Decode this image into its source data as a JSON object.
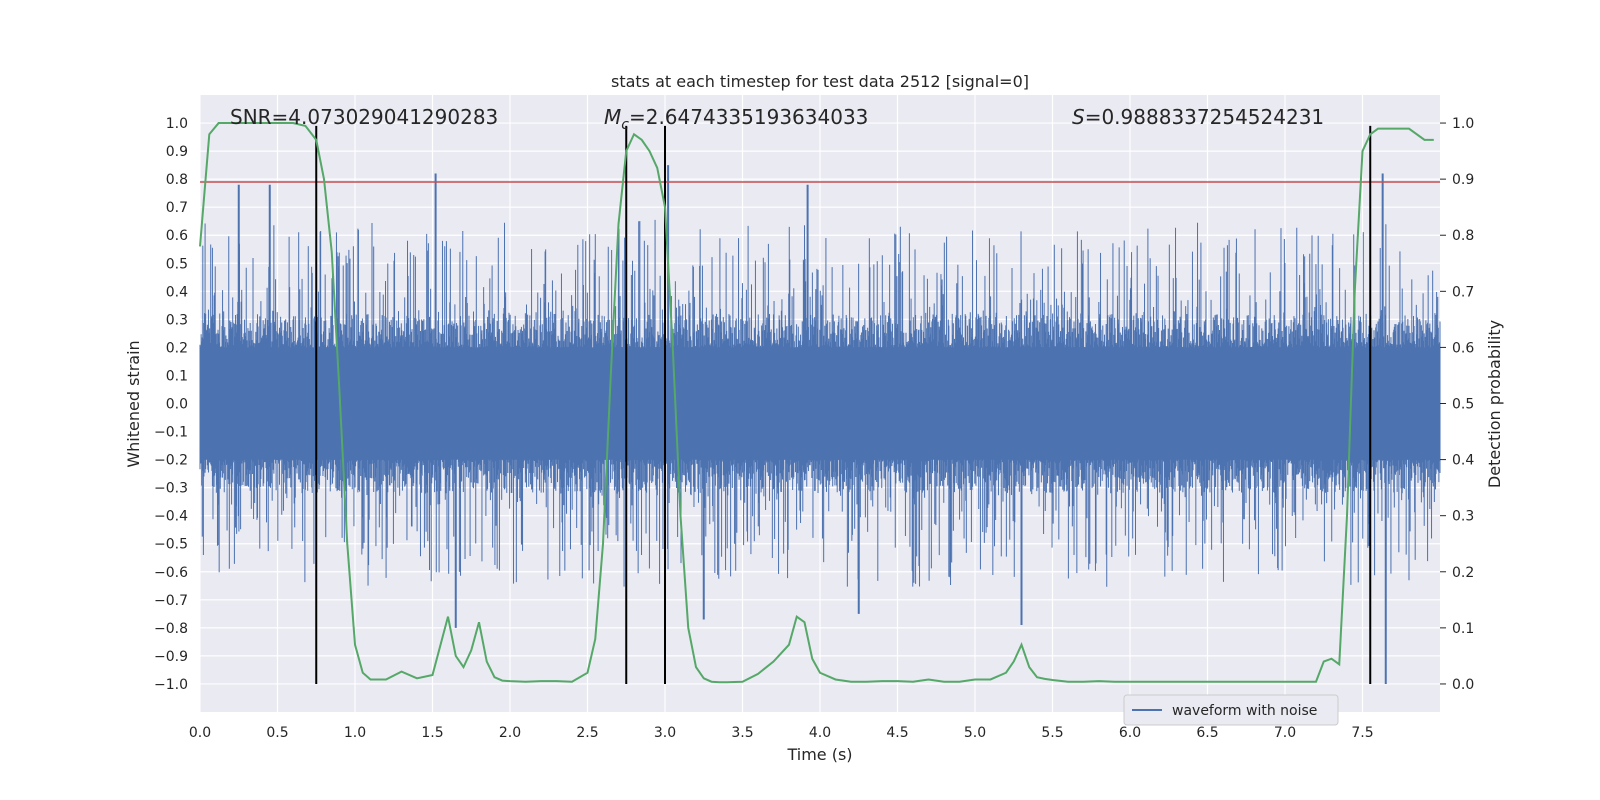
{
  "chart_data": {
    "type": "line",
    "title": "stats at each timestep for test data 2512 [signal=0]",
    "xlabel": "Time (s)",
    "ylabel_left": "Whitened strain",
    "ylabel_right": "Detection probability",
    "xlim": [
      0.0,
      8.0
    ],
    "ylim_left": [
      -1.1,
      1.1
    ],
    "ylim_right": [
      -0.05,
      1.05
    ],
    "x_ticks": [
      0.0,
      0.5,
      1.0,
      1.5,
      2.0,
      2.5,
      3.0,
      3.5,
      4.0,
      4.5,
      5.0,
      5.5,
      6.0,
      6.5,
      7.0,
      7.5
    ],
    "x_tick_labels": [
      "0.0",
      "0.5",
      "1.0",
      "1.5",
      "2.0",
      "2.5",
      "3.0",
      "3.5",
      "4.0",
      "4.5",
      "5.0",
      "5.5",
      "6.0",
      "6.5",
      "7.0",
      "7.5"
    ],
    "y_left_ticks": [
      1.0,
      0.9,
      0.8,
      0.7,
      0.6,
      0.5,
      0.4,
      0.3,
      0.2,
      0.1,
      0.0,
      -0.1,
      -0.2,
      -0.3,
      -0.4,
      -0.5,
      -0.6,
      -0.7,
      -0.8,
      -0.9,
      -1.0
    ],
    "y_left_tick_labels": [
      "1.0",
      "0.9",
      "0.8",
      "0.7",
      "0.6",
      "0.5",
      "0.4",
      "0.3",
      "0.2",
      "0.1",
      "0.0",
      "−0.1",
      "−0.2",
      "−0.3",
      "−0.4",
      "−0.5",
      "−0.6",
      "−0.7",
      "−0.8",
      "−0.9",
      "−1.0"
    ],
    "y_right_ticks": [
      1.0,
      0.9,
      0.8,
      0.7,
      0.6,
      0.5,
      0.4,
      0.3,
      0.2,
      0.1,
      0.0
    ],
    "y_right_tick_labels": [
      "1.0",
      "0.9",
      "0.8",
      "0.7",
      "0.6",
      "0.5",
      "0.4",
      "0.3",
      "0.2",
      "0.1",
      "0.0"
    ],
    "annotations": {
      "snr": "SNR=4.073029041290283",
      "mc_symbol": "M",
      "mc_sub": "c",
      "mc_value": "=2.6474335193634033",
      "s_symbol": "S",
      "s_value": "=0.9888337254524231"
    },
    "threshold_line": {
      "y": 0.79,
      "color": "#c44e52"
    },
    "vertical_lines": [
      {
        "x": 0.75,
        "y_top": 0.99,
        "y_bottom": -1.0
      },
      {
        "x": 2.75,
        "y_top": 0.99,
        "y_bottom": -1.0
      },
      {
        "x": 3.0,
        "y_top": 0.99,
        "y_bottom": -1.0
      },
      {
        "x": 7.55,
        "y_top": 0.99,
        "y_bottom": -1.0
      }
    ],
    "waveform": {
      "name": "waveform with noise",
      "color": "#4c72b0",
      "x_range": [
        0.0,
        8.0
      ],
      "core_amplitude": 0.2,
      "typical_peak": 0.55,
      "spikes": [
        {
          "x": 0.25,
          "y": 0.78
        },
        {
          "x": 0.45,
          "y": 0.78
        },
        {
          "x": 1.52,
          "y": 0.82
        },
        {
          "x": 1.65,
          "y": -0.8
        },
        {
          "x": 3.02,
          "y": 0.85
        },
        {
          "x": 3.25,
          "y": -0.77
        },
        {
          "x": 3.92,
          "y": 0.78
        },
        {
          "x": 4.25,
          "y": -0.75
        },
        {
          "x": 5.3,
          "y": -0.79
        },
        {
          "x": 7.63,
          "y": 0.82
        },
        {
          "x": 7.65,
          "y": -1.0
        }
      ]
    },
    "detection_probability": {
      "color": "#55a868",
      "x": [
        0.0,
        0.06,
        0.12,
        0.2,
        0.3,
        0.4,
        0.5,
        0.6,
        0.68,
        0.75,
        0.8,
        0.85,
        0.9,
        0.95,
        1.0,
        1.05,
        1.1,
        1.2,
        1.3,
        1.4,
        1.5,
        1.6,
        1.65,
        1.7,
        1.75,
        1.8,
        1.85,
        1.9,
        1.95,
        2.0,
        2.1,
        2.2,
        2.3,
        2.4,
        2.5,
        2.55,
        2.6,
        2.65,
        2.7,
        2.75,
        2.8,
        2.85,
        2.9,
        2.95,
        3.0,
        3.05,
        3.1,
        3.15,
        3.2,
        3.25,
        3.3,
        3.35,
        3.4,
        3.5,
        3.6,
        3.7,
        3.8,
        3.85,
        3.9,
        3.95,
        4.0,
        4.1,
        4.2,
        4.3,
        4.4,
        4.5,
        4.6,
        4.7,
        4.8,
        4.9,
        5.0,
        5.1,
        5.2,
        5.25,
        5.3,
        5.35,
        5.4,
        5.45,
        5.5,
        5.6,
        5.7,
        5.8,
        5.9,
        6.0,
        6.1,
        6.2,
        6.3,
        6.4,
        6.5,
        6.6,
        6.7,
        6.8,
        6.9,
        7.0,
        7.1,
        7.2,
        7.25,
        7.3,
        7.35,
        7.4,
        7.45,
        7.5,
        7.55,
        7.6,
        7.65,
        7.7,
        7.8,
        7.9,
        7.96
      ],
      "y": [
        0.78,
        0.98,
        1.0,
        1.0,
        1.0,
        1.0,
        1.0,
        1.0,
        0.995,
        0.97,
        0.9,
        0.77,
        0.52,
        0.25,
        0.07,
        0.02,
        0.008,
        0.008,
        0.022,
        0.01,
        0.016,
        0.12,
        0.05,
        0.03,
        0.06,
        0.11,
        0.04,
        0.012,
        0.006,
        0.005,
        0.004,
        0.005,
        0.005,
        0.004,
        0.02,
        0.08,
        0.25,
        0.55,
        0.82,
        0.95,
        0.98,
        0.97,
        0.95,
        0.92,
        0.85,
        0.6,
        0.3,
        0.1,
        0.03,
        0.01,
        0.004,
        0.003,
        0.003,
        0.004,
        0.018,
        0.04,
        0.07,
        0.12,
        0.11,
        0.045,
        0.02,
        0.008,
        0.004,
        0.004,
        0.005,
        0.005,
        0.004,
        0.008,
        0.004,
        0.004,
        0.008,
        0.008,
        0.02,
        0.04,
        0.07,
        0.03,
        0.012,
        0.009,
        0.007,
        0.004,
        0.004,
        0.005,
        0.004,
        0.004,
        0.004,
        0.004,
        0.004,
        0.004,
        0.004,
        0.004,
        0.004,
        0.004,
        0.004,
        0.004,
        0.004,
        0.004,
        0.04,
        0.045,
        0.035,
        0.3,
        0.7,
        0.95,
        0.98,
        0.99,
        0.99,
        0.99,
        0.99,
        0.97,
        0.97
      ]
    },
    "legend": {
      "label": "waveform with noise",
      "placement": "lower-right"
    },
    "grid": true
  }
}
